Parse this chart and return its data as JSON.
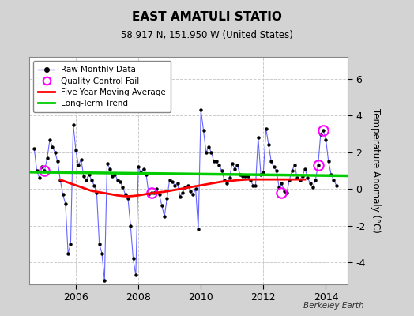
{
  "title": "EAST AMATULI STATIO",
  "subtitle": "58.917 N, 151.950 W (United States)",
  "ylabel": "Temperature Anomaly (°C)",
  "credit": "Berkeley Earth",
  "bg_color": "#d3d3d3",
  "plot_bg_color": "#ffffff",
  "ylim": [
    -5.2,
    7.2
  ],
  "yticks": [
    -4,
    -2,
    0,
    2,
    4,
    6
  ],
  "xmin": 2004.5,
  "xmax": 2014.7,
  "xticks": [
    2006,
    2008,
    2010,
    2012,
    2014
  ],
  "raw_x": [
    2004.667,
    2004.75,
    2004.833,
    2004.917,
    2005.0,
    2005.083,
    2005.167,
    2005.25,
    2005.333,
    2005.417,
    2005.5,
    2005.583,
    2005.667,
    2005.75,
    2005.833,
    2005.917,
    2006.0,
    2006.083,
    2006.167,
    2006.25,
    2006.333,
    2006.417,
    2006.5,
    2006.583,
    2006.667,
    2006.75,
    2006.833,
    2006.917,
    2007.0,
    2007.083,
    2007.167,
    2007.25,
    2007.333,
    2007.417,
    2007.5,
    2007.583,
    2007.667,
    2007.75,
    2007.833,
    2007.917,
    2008.0,
    2008.083,
    2008.167,
    2008.25,
    2008.333,
    2008.417,
    2008.5,
    2008.583,
    2008.667,
    2008.75,
    2008.833,
    2008.917,
    2009.0,
    2009.083,
    2009.167,
    2009.25,
    2009.333,
    2009.417,
    2009.5,
    2009.583,
    2009.667,
    2009.75,
    2009.833,
    2009.917,
    2010.0,
    2010.083,
    2010.167,
    2010.25,
    2010.333,
    2010.417,
    2010.5,
    2010.583,
    2010.667,
    2010.75,
    2010.833,
    2010.917,
    2011.0,
    2011.083,
    2011.167,
    2011.25,
    2011.333,
    2011.417,
    2011.5,
    2011.583,
    2011.667,
    2011.75,
    2011.833,
    2011.917,
    2012.0,
    2012.083,
    2012.167,
    2012.25,
    2012.333,
    2012.417,
    2012.5,
    2012.583,
    2012.667,
    2012.75,
    2012.833,
    2012.917,
    2013.0,
    2013.083,
    2013.167,
    2013.25,
    2013.333,
    2013.417,
    2013.5,
    2013.583,
    2013.667,
    2013.75,
    2013.833,
    2013.917,
    2014.0,
    2014.083,
    2014.167,
    2014.25,
    2014.333
  ],
  "raw_y": [
    2.2,
    1.0,
    0.6,
    1.2,
    1.0,
    1.7,
    2.7,
    2.3,
    2.0,
    1.5,
    0.5,
    -0.3,
    -0.8,
    -3.5,
    -3.0,
    3.5,
    2.1,
    1.3,
    1.6,
    0.7,
    0.5,
    0.8,
    0.5,
    0.2,
    -0.2,
    -3.0,
    -3.5,
    -5.0,
    1.4,
    1.1,
    0.7,
    0.8,
    0.5,
    0.4,
    0.1,
    -0.3,
    -0.5,
    -2.0,
    -3.8,
    -4.7,
    1.2,
    0.9,
    1.1,
    0.8,
    -0.3,
    -0.2,
    -0.2,
    0.0,
    -0.3,
    -0.9,
    -1.5,
    -0.5,
    0.5,
    0.4,
    0.2,
    0.3,
    -0.4,
    -0.2,
    0.1,
    0.2,
    -0.1,
    -0.3,
    0.0,
    -2.2,
    4.3,
    3.2,
    2.0,
    2.3,
    2.0,
    1.5,
    1.5,
    1.3,
    1.0,
    0.5,
    0.3,
    0.6,
    1.4,
    1.1,
    1.3,
    0.8,
    0.7,
    0.7,
    0.7,
    0.5,
    0.2,
    0.2,
    2.8,
    0.8,
    0.9,
    3.3,
    2.4,
    1.5,
    1.2,
    1.0,
    0.1,
    0.3,
    -0.1,
    -0.2,
    0.5,
    1.0,
    1.3,
    0.6,
    0.5,
    0.7,
    1.1,
    0.6,
    0.3,
    0.1,
    0.5,
    1.3,
    3.0,
    3.2,
    2.7,
    1.5,
    0.8,
    0.5,
    0.2
  ],
  "qc_fail_x": [
    2005.0,
    2008.417,
    2012.583,
    2013.75,
    2013.917
  ],
  "qc_fail_y": [
    1.0,
    -0.2,
    -0.2,
    1.3,
    3.2
  ],
  "moving_avg_x": [
    2005.5,
    2005.67,
    2005.83,
    2006.0,
    2006.17,
    2006.33,
    2006.5,
    2006.67,
    2006.83,
    2007.0,
    2007.17,
    2007.33,
    2007.5,
    2007.67,
    2007.83,
    2008.0,
    2008.17,
    2008.33,
    2008.5,
    2008.67,
    2008.83,
    2009.0,
    2009.17,
    2009.33,
    2009.5,
    2009.67,
    2009.83,
    2010.0,
    2010.17,
    2010.33,
    2010.5,
    2010.67,
    2010.83,
    2011.0,
    2011.17,
    2011.33,
    2011.5,
    2011.67,
    2011.83,
    2012.0,
    2012.17,
    2012.33,
    2012.5,
    2012.67,
    2012.83,
    2013.0,
    2013.17,
    2013.33
  ],
  "moving_avg_y": [
    0.5,
    0.4,
    0.3,
    0.2,
    0.1,
    0.0,
    -0.1,
    -0.15,
    -0.2,
    -0.25,
    -0.3,
    -0.35,
    -0.38,
    -0.4,
    -0.38,
    -0.35,
    -0.3,
    -0.25,
    -0.22,
    -0.18,
    -0.15,
    -0.1,
    -0.05,
    0.0,
    0.05,
    0.1,
    0.15,
    0.2,
    0.25,
    0.3,
    0.35,
    0.4,
    0.42,
    0.45,
    0.48,
    0.5,
    0.52,
    0.52,
    0.52,
    0.52,
    0.52,
    0.52,
    0.52,
    0.52,
    0.52,
    0.52,
    0.52,
    0.52
  ],
  "trend_x": [
    2004.5,
    2014.7
  ],
  "trend_y": [
    0.92,
    0.72
  ],
  "raw_color": "#6666ff",
  "raw_marker_color": "#000000",
  "qc_color": "#ff00ff",
  "moving_avg_color": "#ff0000",
  "trend_color": "#00cc00",
  "grid_color": "#cccccc"
}
